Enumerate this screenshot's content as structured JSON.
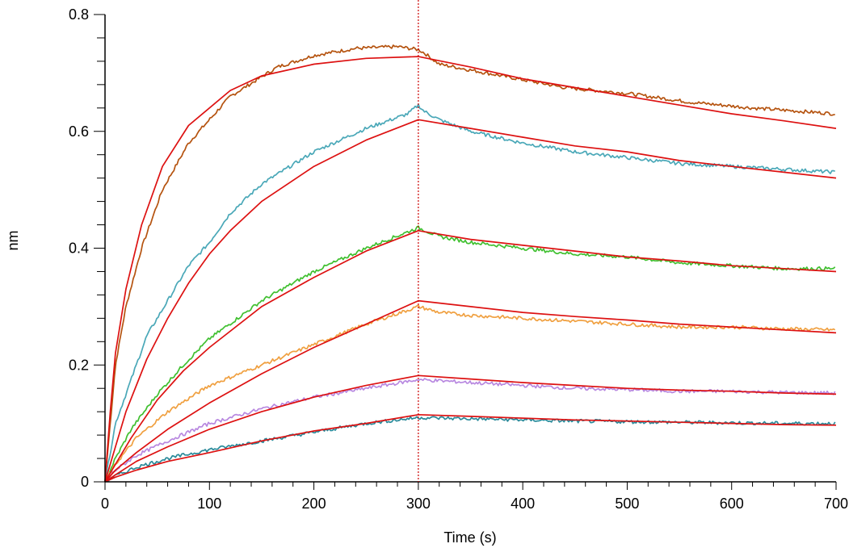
{
  "chart_data": {
    "type": "line",
    "title": "",
    "xlabel": "Time (s)",
    "ylabel": "nm",
    "xlim": [
      0,
      700
    ],
    "ylim": [
      0,
      0.8
    ],
    "x_ticks": [
      0,
      100,
      200,
      300,
      400,
      500,
      600,
      700
    ],
    "x_tick_labels": [
      "0",
      "100",
      "200",
      "300",
      "400",
      "500",
      "600",
      "700"
    ],
    "y_ticks": [
      0,
      0.2,
      0.4,
      0.6,
      0.8
    ],
    "y_tick_labels": [
      "0",
      "0.2",
      "0.4",
      "0.6",
      "0.8"
    ],
    "grid": false,
    "legend": "none",
    "reference_line": {
      "x": 300,
      "color": "#cc0000",
      "style": "dotted"
    },
    "series": [
      {
        "color": "#b5530f",
        "kind": "measured",
        "points": [
          [
            0,
            0
          ],
          [
            5,
            0.1
          ],
          [
            10,
            0.2
          ],
          [
            20,
            0.3
          ],
          [
            35,
            0.4
          ],
          [
            55,
            0.5
          ],
          [
            80,
            0.58
          ],
          [
            120,
            0.66
          ],
          [
            165,
            0.71
          ],
          [
            200,
            0.73
          ],
          [
            240,
            0.742
          ],
          [
            280,
            0.745
          ],
          [
            300,
            0.74
          ],
          [
            305,
            0.735
          ],
          [
            320,
            0.715
          ],
          [
            380,
            0.695
          ],
          [
            440,
            0.675
          ],
          [
            500,
            0.665
          ],
          [
            560,
            0.65
          ],
          [
            620,
            0.64
          ],
          [
            700,
            0.63
          ]
        ]
      },
      {
        "color": "#dd1111",
        "kind": "fit",
        "points": [
          [
            0,
            0
          ],
          [
            5,
            0.12
          ],
          [
            10,
            0.22
          ],
          [
            20,
            0.33
          ],
          [
            35,
            0.44
          ],
          [
            55,
            0.54
          ],
          [
            80,
            0.61
          ],
          [
            120,
            0.67
          ],
          [
            150,
            0.695
          ],
          [
            200,
            0.715
          ],
          [
            250,
            0.725
          ],
          [
            300,
            0.728
          ],
          [
            350,
            0.71
          ],
          [
            400,
            0.69
          ],
          [
            450,
            0.675
          ],
          [
            500,
            0.66
          ],
          [
            550,
            0.645
          ],
          [
            600,
            0.63
          ],
          [
            650,
            0.618
          ],
          [
            700,
            0.605
          ]
        ]
      },
      {
        "color": "#4aa8b8",
        "kind": "measured",
        "points": [
          [
            0,
            0
          ],
          [
            10,
            0.1
          ],
          [
            20,
            0.15
          ],
          [
            40,
            0.25
          ],
          [
            60,
            0.31
          ],
          [
            80,
            0.37
          ],
          [
            100,
            0.41
          ],
          [
            120,
            0.46
          ],
          [
            150,
            0.51
          ],
          [
            200,
            0.565
          ],
          [
            250,
            0.605
          ],
          [
            290,
            0.63
          ],
          [
            300,
            0.645
          ],
          [
            305,
            0.635
          ],
          [
            320,
            0.62
          ],
          [
            350,
            0.6
          ],
          [
            400,
            0.58
          ],
          [
            450,
            0.565
          ],
          [
            500,
            0.555
          ],
          [
            550,
            0.545
          ],
          [
            600,
            0.54
          ],
          [
            650,
            0.535
          ],
          [
            700,
            0.53
          ]
        ]
      },
      {
        "color": "#dd1111",
        "kind": "fit",
        "points": [
          [
            0,
            0
          ],
          [
            10,
            0.06
          ],
          [
            20,
            0.12
          ],
          [
            40,
            0.21
          ],
          [
            60,
            0.28
          ],
          [
            80,
            0.34
          ],
          [
            100,
            0.39
          ],
          [
            120,
            0.43
          ],
          [
            150,
            0.48
          ],
          [
            200,
            0.54
          ],
          [
            250,
            0.585
          ],
          [
            300,
            0.62
          ],
          [
            350,
            0.605
          ],
          [
            400,
            0.59
          ],
          [
            450,
            0.575
          ],
          [
            500,
            0.565
          ],
          [
            550,
            0.55
          ],
          [
            600,
            0.54
          ],
          [
            650,
            0.53
          ],
          [
            700,
            0.52
          ]
        ]
      },
      {
        "color": "#40c030",
        "kind": "measured",
        "points": [
          [
            0,
            0
          ],
          [
            10,
            0.04
          ],
          [
            25,
            0.09
          ],
          [
            50,
            0.15
          ],
          [
            75,
            0.2
          ],
          [
            100,
            0.245
          ],
          [
            150,
            0.31
          ],
          [
            200,
            0.36
          ],
          [
            250,
            0.4
          ],
          [
            300,
            0.435
          ],
          [
            320,
            0.42
          ],
          [
            350,
            0.41
          ],
          [
            400,
            0.4
          ],
          [
            450,
            0.39
          ],
          [
            500,
            0.385
          ],
          [
            550,
            0.375
          ],
          [
            600,
            0.37
          ],
          [
            650,
            0.365
          ],
          [
            700,
            0.365
          ]
        ]
      },
      {
        "color": "#dd1111",
        "kind": "fit",
        "points": [
          [
            0,
            0
          ],
          [
            10,
            0.03
          ],
          [
            25,
            0.075
          ],
          [
            50,
            0.14
          ],
          [
            75,
            0.19
          ],
          [
            100,
            0.23
          ],
          [
            150,
            0.3
          ],
          [
            200,
            0.35
          ],
          [
            250,
            0.395
          ],
          [
            300,
            0.43
          ],
          [
            350,
            0.415
          ],
          [
            400,
            0.405
          ],
          [
            450,
            0.395
          ],
          [
            500,
            0.385
          ],
          [
            550,
            0.378
          ],
          [
            600,
            0.37
          ],
          [
            650,
            0.365
          ],
          [
            700,
            0.36
          ]
        ]
      },
      {
        "color": "#f0a040",
        "kind": "measured",
        "points": [
          [
            0,
            0
          ],
          [
            10,
            0.03
          ],
          [
            30,
            0.075
          ],
          [
            60,
            0.12
          ],
          [
            100,
            0.165
          ],
          [
            150,
            0.2
          ],
          [
            200,
            0.235
          ],
          [
            250,
            0.27
          ],
          [
            300,
            0.3
          ],
          [
            320,
            0.29
          ],
          [
            350,
            0.285
          ],
          [
            400,
            0.28
          ],
          [
            450,
            0.275
          ],
          [
            500,
            0.27
          ],
          [
            550,
            0.265
          ],
          [
            600,
            0.265
          ],
          [
            650,
            0.262
          ],
          [
            700,
            0.26
          ]
        ]
      },
      {
        "color": "#dd1111",
        "kind": "fit",
        "points": [
          [
            0,
            0
          ],
          [
            10,
            0.02
          ],
          [
            30,
            0.05
          ],
          [
            60,
            0.09
          ],
          [
            100,
            0.135
          ],
          [
            150,
            0.185
          ],
          [
            200,
            0.23
          ],
          [
            250,
            0.27
          ],
          [
            300,
            0.31
          ],
          [
            350,
            0.3
          ],
          [
            400,
            0.29
          ],
          [
            450,
            0.283
          ],
          [
            500,
            0.277
          ],
          [
            550,
            0.27
          ],
          [
            600,
            0.265
          ],
          [
            650,
            0.26
          ],
          [
            700,
            0.255
          ]
        ]
      },
      {
        "color": "#b888e0",
        "kind": "measured",
        "points": [
          [
            0,
            0
          ],
          [
            10,
            0.02
          ],
          [
            30,
            0.045
          ],
          [
            60,
            0.07
          ],
          [
            100,
            0.1
          ],
          [
            150,
            0.125
          ],
          [
            200,
            0.145
          ],
          [
            250,
            0.16
          ],
          [
            300,
            0.175
          ],
          [
            350,
            0.17
          ],
          [
            400,
            0.165
          ],
          [
            450,
            0.16
          ],
          [
            500,
            0.158
          ],
          [
            550,
            0.155
          ],
          [
            600,
            0.155
          ],
          [
            650,
            0.153
          ],
          [
            700,
            0.152
          ]
        ]
      },
      {
        "color": "#dd1111",
        "kind": "fit",
        "points": [
          [
            0,
            0
          ],
          [
            10,
            0.012
          ],
          [
            30,
            0.035
          ],
          [
            60,
            0.06
          ],
          [
            100,
            0.09
          ],
          [
            150,
            0.12
          ],
          [
            200,
            0.145
          ],
          [
            250,
            0.165
          ],
          [
            300,
            0.182
          ],
          [
            350,
            0.176
          ],
          [
            400,
            0.17
          ],
          [
            450,
            0.165
          ],
          [
            500,
            0.16
          ],
          [
            550,
            0.157
          ],
          [
            600,
            0.155
          ],
          [
            650,
            0.152
          ],
          [
            700,
            0.15
          ]
        ]
      },
      {
        "color": "#2a8a9a",
        "kind": "measured",
        "points": [
          [
            0,
            0
          ],
          [
            10,
            0.01
          ],
          [
            30,
            0.025
          ],
          [
            60,
            0.04
          ],
          [
            100,
            0.055
          ],
          [
            150,
            0.07
          ],
          [
            200,
            0.085
          ],
          [
            250,
            0.1
          ],
          [
            300,
            0.11
          ],
          [
            350,
            0.108
          ],
          [
            400,
            0.106
          ],
          [
            450,
            0.104
          ],
          [
            500,
            0.103
          ],
          [
            550,
            0.102
          ],
          [
            600,
            0.101
          ],
          [
            650,
            0.1
          ],
          [
            700,
            0.1
          ]
        ]
      },
      {
        "color": "#dd1111",
        "kind": "fit",
        "points": [
          [
            0,
            0
          ],
          [
            10,
            0.008
          ],
          [
            30,
            0.02
          ],
          [
            60,
            0.035
          ],
          [
            100,
            0.05
          ],
          [
            150,
            0.07
          ],
          [
            200,
            0.087
          ],
          [
            250,
            0.1
          ],
          [
            300,
            0.115
          ],
          [
            350,
            0.112
          ],
          [
            400,
            0.109
          ],
          [
            450,
            0.106
          ],
          [
            500,
            0.104
          ],
          [
            550,
            0.102
          ],
          [
            600,
            0.1
          ],
          [
            650,
            0.098
          ],
          [
            700,
            0.097
          ]
        ]
      }
    ]
  }
}
